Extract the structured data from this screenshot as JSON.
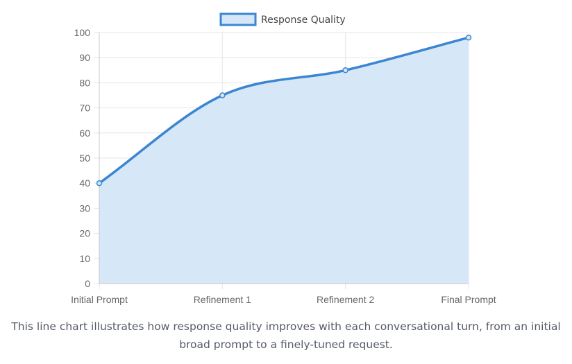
{
  "chart_data": {
    "type": "area",
    "categories": [
      "Initial Prompt",
      "Refinement 1",
      "Refinement 2",
      "Final Prompt"
    ],
    "series": [
      {
        "name": "Response Quality",
        "values": [
          40,
          75,
          85,
          98
        ]
      }
    ],
    "ylim": [
      0,
      100
    ],
    "yticks": [
      0,
      10,
      20,
      30,
      40,
      50,
      60,
      70,
      80,
      90,
      100
    ],
    "grid": true,
    "legend_position": "top",
    "colors": {
      "line": "#3a86d1",
      "fill": "#d4e6f7",
      "grid": "#e5e5e5",
      "axis": "#c8c8c8"
    }
  },
  "caption": "This line chart illustrates how response quality improves with each conversational turn, from an initial broad prompt to a finely-tuned request."
}
